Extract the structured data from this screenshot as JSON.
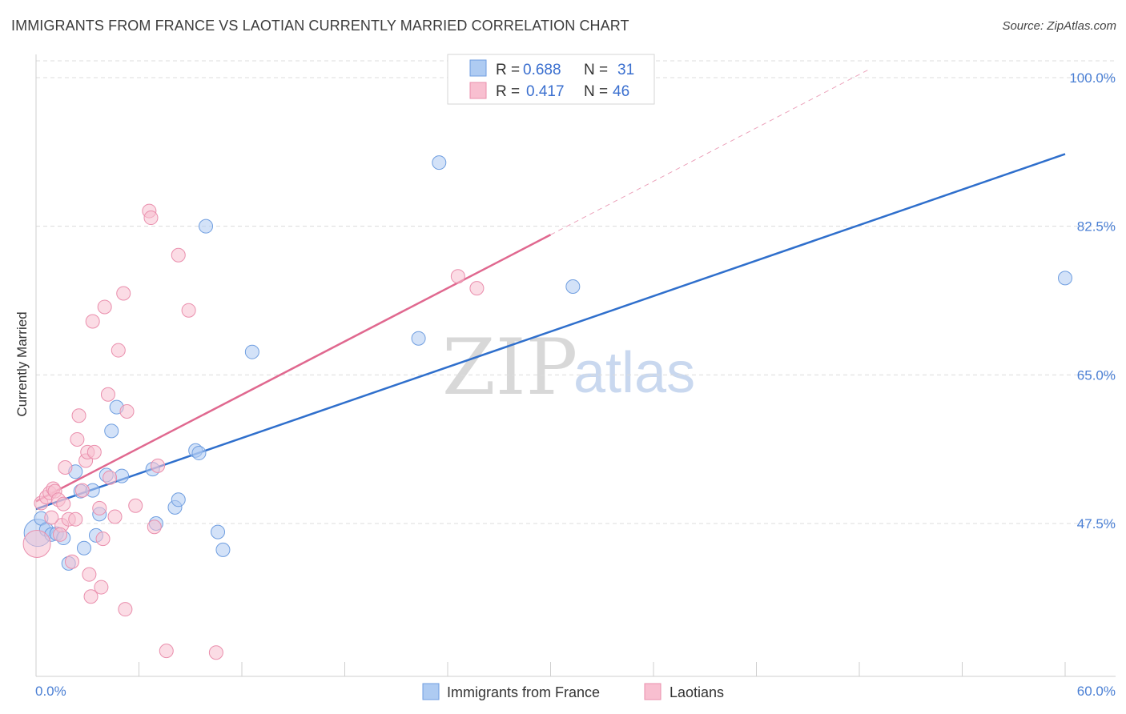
{
  "title": "IMMIGRANTS FROM FRANCE VS LAOTIAN CURRENTLY MARRIED CORRELATION CHART",
  "source": "Source: ZipAtlas.com",
  "watermark": {
    "zip": "ZIP",
    "atlas": "atlas"
  },
  "colors": {
    "blue_fill": "#aecbf2",
    "blue_stroke": "#6f9ee0",
    "blue_line": "#2f6fcc",
    "pink_fill": "#f8bfd0",
    "pink_stroke": "#ea8fad",
    "pink_line": "#e0688f",
    "tick_text": "#4a7fd4",
    "grid": "#dcdcdc"
  },
  "legend": {
    "rows": [
      {
        "r_label": "R =",
        "r_value": "0.688",
        "n_label": "N =",
        "n_value": "31"
      },
      {
        "r_label": "R =",
        "r_value": "0.417",
        "n_label": "N =",
        "n_value": "46"
      }
    ]
  },
  "chart_data": {
    "type": "scatter",
    "title": "IMMIGRANTS FROM FRANCE VS LAOTIAN CURRENTLY MARRIED CORRELATION CHART",
    "xlabel": "",
    "ylabel": "Currently Married",
    "xlim": [
      0,
      60
    ],
    "ylim": [
      30.5,
      102
    ],
    "x_tick_labels": [
      "0.0%",
      "60.0%"
    ],
    "y_ticks": [
      47.5,
      65.0,
      82.5,
      100.0
    ],
    "y_tick_labels": [
      "47.5%",
      "65.0%",
      "82.5%",
      "100.0%"
    ],
    "grid": true,
    "legend_position": "top-center",
    "series": [
      {
        "name": "Immigrants from France",
        "r": 0.688,
        "n": 31,
        "trend": {
          "x": [
            0,
            60
          ],
          "y": [
            49.2,
            91.0
          ]
        },
        "points": [
          [
            0.1,
            46.4
          ],
          [
            0.3,
            48.1
          ],
          [
            0.6,
            46.8
          ],
          [
            0.9,
            46.2
          ],
          [
            1.2,
            46.3
          ],
          [
            1.6,
            45.8
          ],
          [
            1.9,
            42.8
          ],
          [
            2.3,
            53.6
          ],
          [
            2.6,
            51.3
          ],
          [
            2.8,
            44.6
          ],
          [
            3.3,
            51.4
          ],
          [
            3.5,
            46.1
          ],
          [
            3.7,
            48.6
          ],
          [
            4.1,
            53.2
          ],
          [
            4.4,
            58.4
          ],
          [
            4.7,
            61.2
          ],
          [
            5.0,
            53.1
          ],
          [
            6.8,
            53.9
          ],
          [
            7.0,
            47.5
          ],
          [
            8.1,
            49.4
          ],
          [
            8.3,
            50.3
          ],
          [
            9.3,
            56.1
          ],
          [
            9.5,
            55.8
          ],
          [
            9.9,
            82.5
          ],
          [
            10.6,
            46.5
          ],
          [
            10.9,
            44.4
          ],
          [
            12.6,
            67.7
          ],
          [
            22.3,
            69.3
          ],
          [
            23.5,
            90.0
          ],
          [
            31.3,
            75.4
          ],
          [
            60.0,
            76.4
          ]
        ]
      },
      {
        "name": "Laotians",
        "r": 0.417,
        "n": 46,
        "trend": {
          "x": [
            0,
            30
          ],
          "y": [
            50.1,
            81.5
          ]
        },
        "dashed_extension": {
          "x": [
            30,
            48.6
          ],
          "y": [
            81.5,
            101.0
          ]
        },
        "points": [
          [
            0.05,
            45.1
          ],
          [
            0.3,
            49.9
          ],
          [
            0.6,
            50.6
          ],
          [
            0.8,
            51.1
          ],
          [
            1.0,
            51.6
          ],
          [
            1.1,
            51.3
          ],
          [
            1.3,
            50.3
          ],
          [
            1.5,
            47.3
          ],
          [
            1.6,
            49.8
          ],
          [
            1.7,
            54.1
          ],
          [
            1.9,
            48.0
          ],
          [
            2.1,
            43.0
          ],
          [
            2.3,
            48.0
          ],
          [
            2.4,
            57.4
          ],
          [
            2.5,
            60.2
          ],
          [
            2.7,
            51.4
          ],
          [
            2.9,
            54.9
          ],
          [
            3.0,
            55.9
          ],
          [
            3.1,
            41.5
          ],
          [
            3.3,
            71.3
          ],
          [
            3.4,
            55.9
          ],
          [
            3.7,
            49.3
          ],
          [
            3.8,
            40.0
          ],
          [
            3.9,
            45.7
          ],
          [
            4.0,
            73.0
          ],
          [
            4.2,
            62.7
          ],
          [
            4.3,
            52.9
          ],
          [
            4.6,
            48.3
          ],
          [
            4.8,
            67.9
          ],
          [
            5.1,
            74.6
          ],
          [
            5.2,
            37.4
          ],
          [
            5.3,
            60.7
          ],
          [
            5.8,
            49.6
          ],
          [
            6.6,
            84.3
          ],
          [
            6.7,
            83.5
          ],
          [
            6.9,
            47.1
          ],
          [
            7.1,
            54.3
          ],
          [
            7.6,
            32.5
          ],
          [
            8.3,
            79.1
          ],
          [
            8.9,
            72.6
          ],
          [
            10.5,
            32.3
          ],
          [
            24.6,
            76.6
          ],
          [
            25.7,
            75.2
          ],
          [
            3.2,
            38.9
          ],
          [
            1.4,
            46.2
          ],
          [
            0.9,
            48.2
          ]
        ]
      }
    ]
  }
}
